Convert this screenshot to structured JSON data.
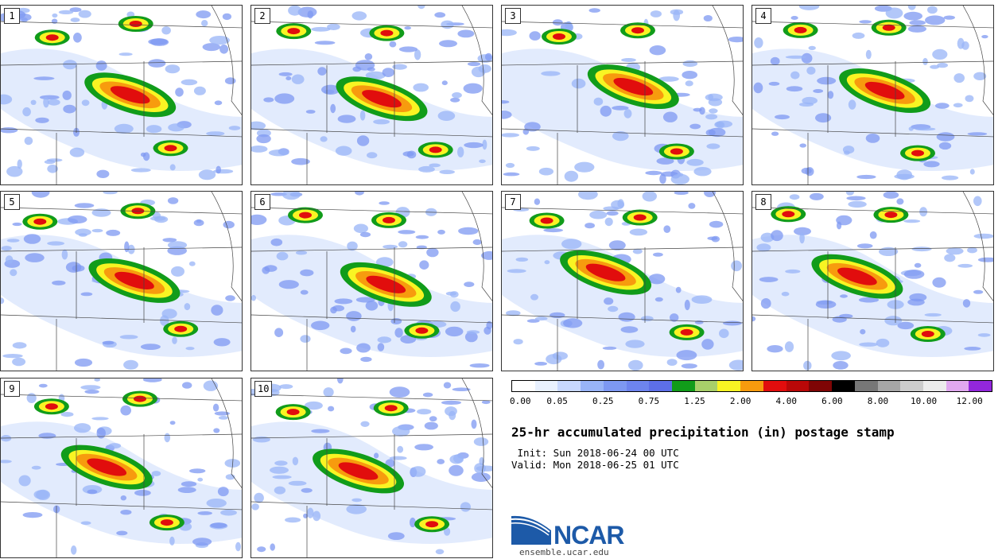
{
  "panels": [
    {
      "label": "1"
    },
    {
      "label": "2"
    },
    {
      "label": "3"
    },
    {
      "label": "4"
    },
    {
      "label": "5"
    },
    {
      "label": "6"
    },
    {
      "label": "7"
    },
    {
      "label": "8"
    },
    {
      "label": "9"
    },
    {
      "label": "10"
    }
  ],
  "colorbar": {
    "colors": [
      "#ffffff",
      "#e9f1ff",
      "#c8d8ff",
      "#98b4f7",
      "#7d98f2",
      "#6d84ee",
      "#5d6fe8",
      "#119c1a",
      "#a8cf6a",
      "#f9f423",
      "#f79b0e",
      "#e10d0d",
      "#b90808",
      "#7f0505",
      "#000000",
      "#777777",
      "#a6a6a6",
      "#cccccc",
      "#ececec",
      "#e0a8ef",
      "#9327dc"
    ],
    "tick_labels": [
      "0.00",
      "0.05",
      "0.25",
      "0.75",
      "1.25",
      "2.00",
      "4.00",
      "6.00",
      "8.00",
      "10.00",
      "12.00"
    ]
  },
  "title": "25-hr accumulated precipitation (in) postage stamp",
  "init_text": " Init: Sun 2018-06-24 00 UTC",
  "valid_text": "Valid: Mon 2018-06-25 01 UTC",
  "logo": {
    "text": "NCAR",
    "url": "ensemble.ucar.edu"
  }
}
